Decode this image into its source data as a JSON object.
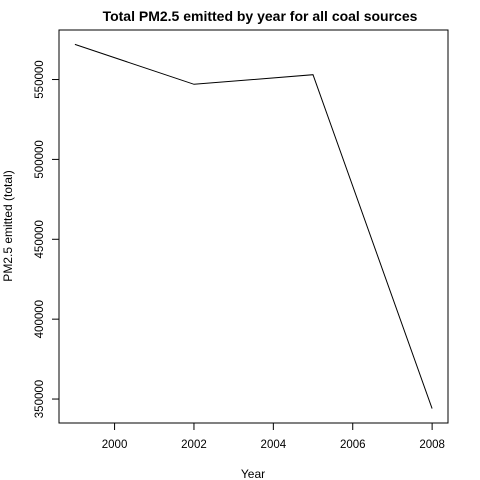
{
  "chart_data": {
    "type": "line",
    "title": "Total PM2.5 emitted by year for all coal sources",
    "xlabel": "Year",
    "ylabel": "PM2.5 emitted (total)",
    "x": [
      1999,
      2002,
      2005,
      2008
    ],
    "series": [
      {
        "values": [
          572000,
          547000,
          553000,
          344000
        ]
      }
    ],
    "x_ticks": [
      "2000",
      "2002",
      "2004",
      "2006",
      "2008"
    ],
    "y_ticks": [
      "350000",
      "400000",
      "450000",
      "500000",
      "550000"
    ],
    "xlim": [
      1998.6,
      2008.4
    ],
    "ylim": [
      335000,
      581000
    ],
    "grid": false,
    "line_color": "#000000"
  }
}
